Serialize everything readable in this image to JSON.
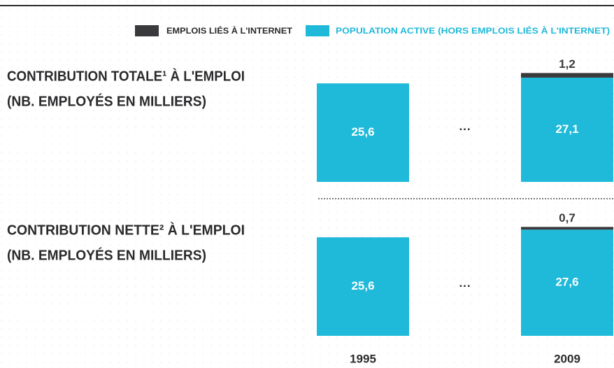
{
  "chart_data": {
    "type": "bar",
    "stacked": true,
    "categories": [
      "1995",
      "2009"
    ],
    "series": [
      {
        "name": "EMPLOIS LIÉS À L'INTERNET",
        "color": "#3a3a3d"
      },
      {
        "name": "POPULATION ACTIVE (HORS EMPLOIS LIÉS À L'INTERNET)",
        "color": "#1fb9d9"
      }
    ],
    "panels": [
      {
        "title": "CONTRIBUTION TOTALE¹ À L'EMPLOI",
        "subtitle": "(NB. EMPLOYÉS EN MILLIERS)",
        "values": [
          [
            null,
            1.2
          ],
          [
            25.6,
            27.1
          ]
        ],
        "value_labels": [
          [
            null,
            "1,2"
          ],
          [
            "25,6",
            "27,1"
          ]
        ]
      },
      {
        "title": "CONTRIBUTION NETTE² À L'EMPLOI",
        "subtitle": "(NB. EMPLOYÉS EN MILLIERS)",
        "values": [
          [
            null,
            0.7
          ],
          [
            25.6,
            27.6
          ]
        ],
        "value_labels": [
          [
            null,
            "0,7"
          ],
          [
            "25,6",
            "27,6"
          ]
        ]
      }
    ]
  }
}
